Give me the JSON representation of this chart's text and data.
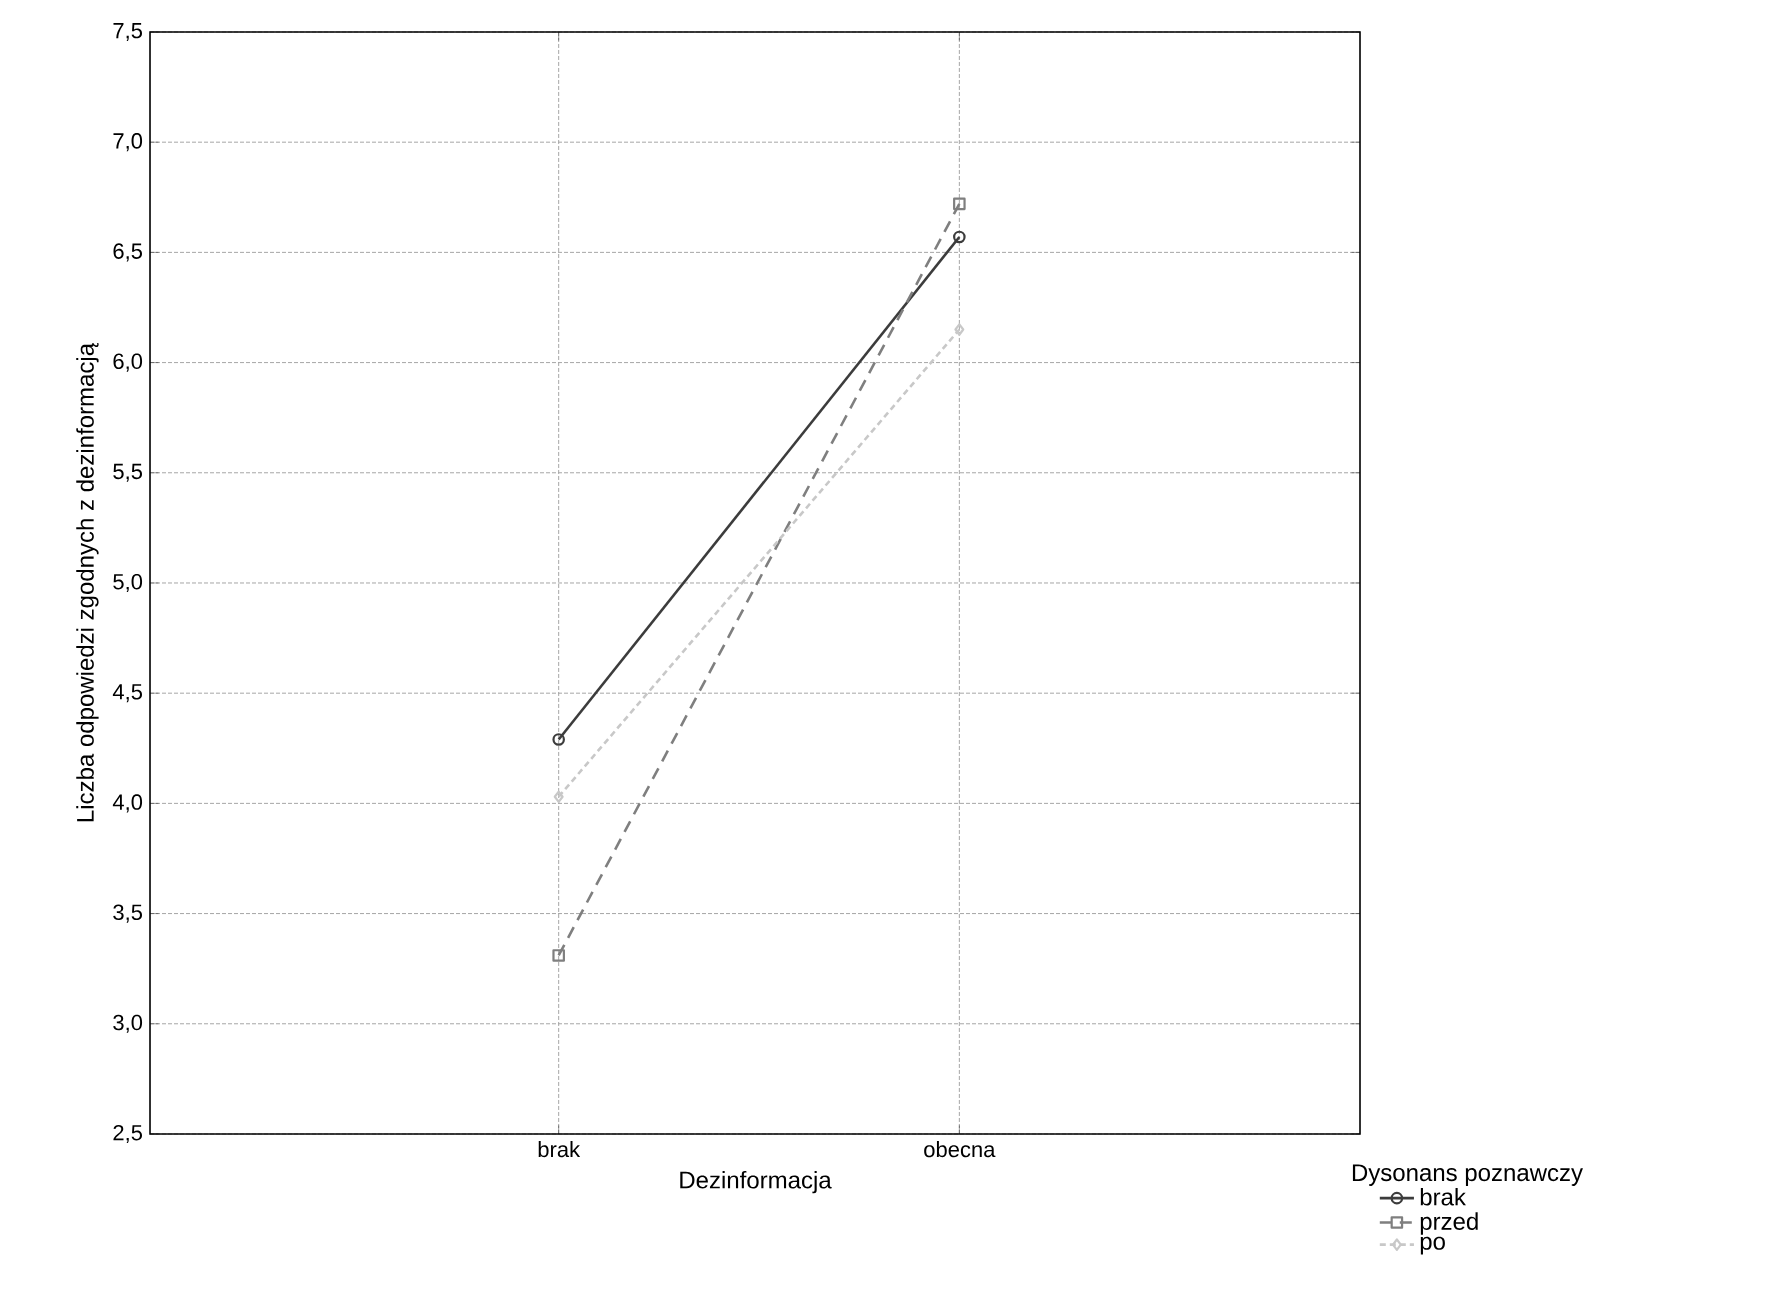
{
  "chart_data": {
    "type": "line",
    "xlabel": "Dezinformacja",
    "ylabel": "Liczba odpowiedzi zgodnych z dezinformacją",
    "legend_title": "Dysonans poznawczy",
    "categories": [
      "brak",
      "obecna"
    ],
    "series": [
      {
        "name": "brak",
        "color": "#3c3c3c",
        "values": [
          4.29,
          6.57
        ],
        "marker": "circle",
        "line_style": "solid"
      },
      {
        "name": "przed",
        "color": "#7f7f7f",
        "values": [
          3.31,
          6.72
        ],
        "marker": "square",
        "line_style": "dashed"
      },
      {
        "name": "po",
        "color": "#c8c8c8",
        "values": [
          4.03,
          6.15
        ],
        "marker": "diamond",
        "line_style": "dotted"
      }
    ],
    "ylim": [
      2.5,
      7.5
    ],
    "yticks": [
      {
        "value": 2.5,
        "label": "2,5"
      },
      {
        "value": 3.0,
        "label": "3,0"
      },
      {
        "value": 3.5,
        "label": "3,5"
      },
      {
        "value": 4.0,
        "label": "4,0"
      },
      {
        "value": 4.5,
        "label": "4,5"
      },
      {
        "value": 5.0,
        "label": "5,0"
      },
      {
        "value": 5.5,
        "label": "5,5"
      },
      {
        "value": 6.0,
        "label": "6,0"
      },
      {
        "value": 6.5,
        "label": "6,5"
      },
      {
        "value": 7.0,
        "label": "7,0"
      },
      {
        "value": 7.5,
        "label": "7,5"
      }
    ],
    "grid": true,
    "legend": "bottom right"
  }
}
